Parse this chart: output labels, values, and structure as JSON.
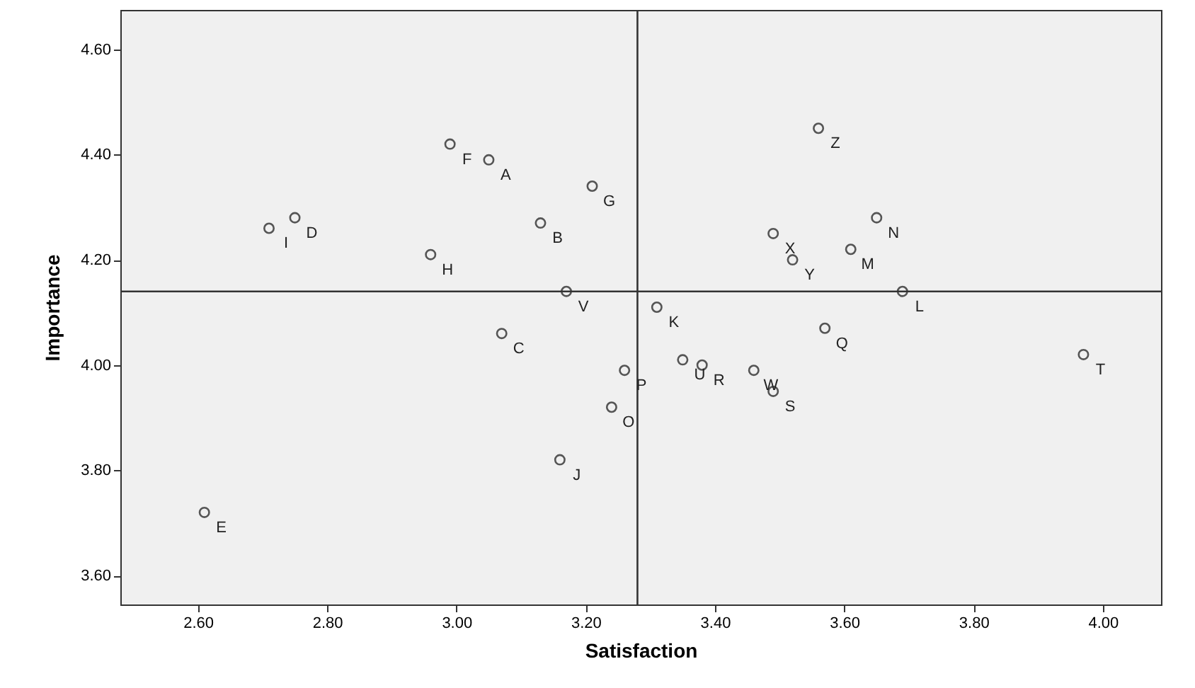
{
  "chart_data": {
    "type": "scatter",
    "xlabel": "Satisfaction",
    "ylabel": "Importance",
    "x": [
      3.05,
      3.13,
      3.07,
      2.75,
      2.61,
      2.99,
      3.21,
      2.96,
      2.71,
      3.16,
      3.31,
      3.69,
      3.61,
      3.65,
      3.24,
      3.26,
      3.57,
      3.38,
      3.49,
      3.97,
      3.35,
      3.17,
      3.46,
      3.49,
      3.52,
      3.56
    ],
    "values": [
      4.39,
      4.27,
      4.06,
      4.28,
      3.72,
      4.42,
      4.34,
      4.21,
      4.26,
      3.82,
      4.11,
      4.14,
      4.22,
      4.28,
      3.92,
      3.99,
      4.07,
      4.0,
      3.95,
      4.02,
      4.01,
      4.14,
      3.99,
      4.25,
      4.2,
      4.45
    ],
    "value_labels": [
      "A",
      "B",
      "C",
      "D",
      "E",
      "F",
      "G",
      "H",
      "I",
      "J",
      "K",
      "L",
      "M",
      "N",
      "O",
      "P",
      "Q",
      "R",
      "S",
      "T",
      "U",
      "V",
      "W",
      "X",
      "Y",
      "Z"
    ],
    "color": "#555555",
    "marker": "circle",
    "xlim": [
      2.48,
      4.09
    ],
    "ylim": [
      3.545,
      4.675
    ],
    "xticks": [
      {
        "value": 2.6,
        "label": "2.60"
      },
      {
        "value": 2.8,
        "label": "2.80"
      },
      {
        "value": 3.0,
        "label": "3.00"
      },
      {
        "value": 3.2,
        "label": "3.20"
      },
      {
        "value": 3.4,
        "label": "3.40"
      },
      {
        "value": 3.6,
        "label": "3.60"
      },
      {
        "value": 3.8,
        "label": "3.80"
      },
      {
        "value": 4.0,
        "label": "4.00"
      }
    ],
    "yticks": [
      {
        "value": 3.6,
        "label": "3.60"
      },
      {
        "value": 3.8,
        "label": "3.80"
      },
      {
        "value": 4.0,
        "label": "4.00"
      },
      {
        "value": 4.2,
        "label": "4.20"
      },
      {
        "value": 4.4,
        "label": "4.40"
      },
      {
        "value": 4.6,
        "label": "4.60"
      }
    ],
    "ref_lines": [
      {
        "axis": "x",
        "value": 3.28
      },
      {
        "axis": "y",
        "value": 4.14
      }
    ],
    "grid": false
  }
}
